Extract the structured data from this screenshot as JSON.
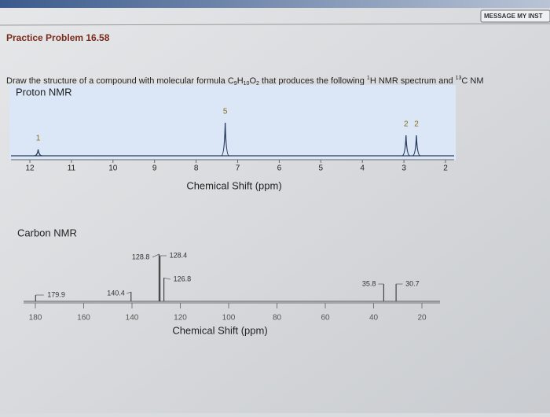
{
  "header": {
    "button": "MESSAGE MY INST",
    "title": "Practice Problem 16.58"
  },
  "question": [
    "Draw the structure of a compound with molecular formula C",
    "9",
    "H",
    "10",
    "O",
    "2",
    " that produces the following ",
    "1",
    "H NMR spectrum and ",
    "13",
    "C NM"
  ],
  "proton_nmr": {
    "title": "Proton NMR",
    "xlabel": "Chemical Shift (ppm)",
    "xticks": [
      12,
      11,
      10,
      9,
      8,
      7,
      6,
      5,
      4,
      3,
      2
    ],
    "peaks": [
      {
        "shift": 11.8,
        "integration": 1
      },
      {
        "shift": 7.3,
        "integration": 5
      },
      {
        "shift": 2.95,
        "integration": 2
      },
      {
        "shift": 2.7,
        "integration": 2
      }
    ]
  },
  "carbon_nmr": {
    "title": "Carbon NMR",
    "xlabel": "Chemical Shift (ppm)",
    "xticks": [
      180,
      160,
      140,
      120,
      100,
      80,
      60,
      40,
      20
    ],
    "peaks": [
      179.9,
      140.4,
      128.8,
      128.4,
      126.8,
      35.8,
      30.7
    ]
  }
}
